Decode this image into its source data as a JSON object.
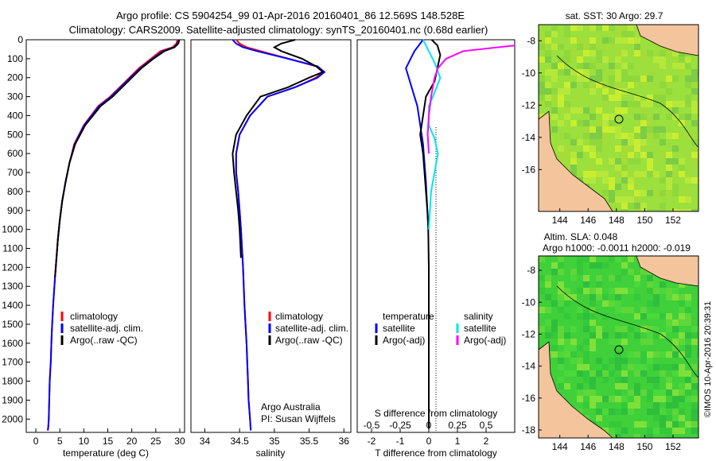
{
  "header": {
    "line1": "Argo profile: CS 5904254_99 01-Apr-2016 20160401_86 12.569S 148.528E",
    "line2": "Climatology: CARS2009. Satellite-adjusted climatology: synTS_20160401.nc (0.68d earlier)"
  },
  "colors": {
    "climatology": "#ff0000",
    "satellite": "#0000ff",
    "argo": "#000000",
    "satellite_salinity": "#00e5ee",
    "argo_salinity_adj": "#ff00ff",
    "land": "#f4c49c",
    "sst_field": "#9be03c",
    "sla_field": "#3fd03a"
  },
  "chart_data": [
    {
      "type": "line",
      "id": "temperature",
      "xlabel": "temperature (deg C)",
      "ylabel": "",
      "xlim": [
        -2,
        31
      ],
      "ylim": [
        2070,
        0
      ],
      "xticks": [
        "0",
        "5",
        "10",
        "15",
        "20",
        "25",
        "30"
      ],
      "yticks": [
        "0",
        "100",
        "200",
        "300",
        "400",
        "500",
        "600",
        "700",
        "800",
        "900",
        "1000",
        "1100",
        "1200",
        "1300",
        "1400",
        "1500",
        "1600",
        "1700",
        "1800",
        "1900",
        "2000"
      ],
      "legend": [
        "climatology",
        "satellite-adj. clim.",
        "Argo(..raw -QC)"
      ],
      "series": [
        {
          "name": "climatology",
          "color": "#ff0000",
          "x": [
            29.5,
            29.3,
            28.5,
            26.0,
            24.0,
            21.5,
            19.5,
            17.5,
            15.5,
            13.0,
            10.0,
            8.0,
            7.0,
            6.2,
            5.5,
            5.0,
            4.6,
            4.3,
            4.0,
            3.6,
            3.3,
            3.1,
            2.9,
            2.8,
            2.7,
            2.6,
            2.5
          ],
          "y": [
            0,
            20,
            40,
            60,
            100,
            150,
            200,
            250,
            300,
            350,
            450,
            550,
            650,
            750,
            850,
            950,
            1050,
            1150,
            1250,
            1400,
            1550,
            1700,
            1800,
            1900,
            2000,
            2040,
            2060
          ]
        },
        {
          "name": "satellite-adj. clim.",
          "color": "#0000ff",
          "x": [
            29.8,
            29.5,
            28.8,
            26.5,
            24.3,
            21.8,
            19.7,
            17.7,
            15.7,
            13.2,
            10.1,
            8.1,
            7.0,
            6.2,
            5.5,
            5.0,
            4.6,
            4.3,
            4.0,
            3.6,
            3.3,
            3.1,
            2.9,
            2.8,
            2.7,
            2.6,
            2.5
          ],
          "y": [
            0,
            20,
            40,
            60,
            100,
            150,
            200,
            250,
            300,
            350,
            450,
            550,
            650,
            750,
            850,
            950,
            1050,
            1150,
            1250,
            1400,
            1550,
            1700,
            1800,
            1900,
            2000,
            2040,
            2060
          ]
        },
        {
          "name": "Argo(..raw -QC)",
          "color": "#000000",
          "x": [
            29.9,
            29.7,
            28.9,
            26.8,
            24.5,
            22.0,
            20.0,
            18.0,
            16.0,
            13.5,
            10.3,
            8.2,
            7.0,
            6.2,
            5.5,
            5.0,
            4.6,
            4.3,
            4.0
          ],
          "y": [
            0,
            20,
            40,
            60,
            100,
            150,
            200,
            250,
            300,
            350,
            450,
            550,
            650,
            750,
            850,
            950,
            1050,
            1150,
            1250
          ]
        }
      ]
    },
    {
      "type": "line",
      "id": "salinity",
      "xlabel": "salinity",
      "xlim": [
        33.8,
        36.1
      ],
      "ylim": [
        2070,
        0
      ],
      "xticks": [
        "34",
        "34.5",
        "35",
        "35.5",
        "36"
      ],
      "legend": [
        "climatology",
        "satellite-adj. clim.",
        "Argo(..raw -QC)"
      ],
      "annotation": [
        "Argo Australia",
        "PI: Susan Wijffels"
      ],
      "series": [
        {
          "name": "climatology",
          "color": "#ff0000",
          "x": [
            34.45,
            34.5,
            34.6,
            34.8,
            35.2,
            35.6,
            35.7,
            35.6,
            35.3,
            34.9,
            34.65,
            34.5,
            34.45,
            34.45,
            34.48,
            34.5,
            34.52,
            34.55,
            34.57,
            34.6,
            34.62,
            34.63,
            34.65,
            34.66
          ],
          "y": [
            0,
            20,
            40,
            60,
            100,
            140,
            170,
            200,
            250,
            300,
            400,
            500,
            600,
            700,
            800,
            900,
            1000,
            1200,
            1400,
            1600,
            1800,
            1900,
            2000,
            2060
          ]
        },
        {
          "name": "satellite-adj. clim.",
          "color": "#0000ff",
          "x": [
            34.4,
            34.45,
            34.55,
            34.75,
            35.2,
            35.62,
            35.72,
            35.62,
            35.3,
            34.9,
            34.65,
            34.5,
            34.45,
            34.45,
            34.48,
            34.5,
            34.52,
            34.55,
            34.57,
            34.6,
            34.62,
            34.63,
            34.65,
            34.66
          ],
          "y": [
            0,
            20,
            40,
            60,
            100,
            140,
            170,
            200,
            250,
            300,
            400,
            500,
            600,
            700,
            800,
            900,
            1000,
            1200,
            1400,
            1600,
            1800,
            1900,
            2000,
            2060
          ]
        },
        {
          "name": "Argo(..raw -QC)",
          "color": "#000000",
          "x": [
            35.3,
            35.1,
            35.0,
            35.1,
            35.4,
            35.6,
            35.7,
            35.5,
            35.2,
            34.8,
            34.6,
            34.45,
            34.4,
            34.42,
            34.45,
            34.48,
            34.5,
            34.52
          ],
          "y": [
            0,
            20,
            40,
            60,
            100,
            140,
            170,
            200,
            250,
            300,
            400,
            500,
            600,
            700,
            800,
            900,
            1000,
            1150
          ]
        }
      ]
    },
    {
      "type": "line",
      "id": "differences",
      "xlabel": "T difference from climatology",
      "xlabel_top": "S difference from climatology",
      "xlim": [
        -2.5,
        3
      ],
      "xlim_s": [
        -0.625,
        0.75
      ],
      "ylim": [
        2070,
        0
      ],
      "xticks": [
        "-2",
        "-1",
        "0",
        "1",
        "2"
      ],
      "xticks_s": [
        "-0.5",
        "-0.25",
        "0",
        "0.25",
        "0.5"
      ],
      "legend_left_title": "temperature",
      "legend_right_title": "salinity",
      "legend": [
        "satellite",
        "Argo(-adj)",
        "satellite",
        "Argo(-adj)"
      ],
      "series": [
        {
          "name": "temperature satellite",
          "color": "#0000ff",
          "x": [
            -0.2,
            -0.5,
            -0.8,
            -0.6,
            -0.4,
            -0.3,
            -0.2,
            -0.15,
            -0.1,
            -0.05,
            0.0
          ],
          "y": [
            0,
            60,
            150,
            250,
            350,
            450,
            550,
            650,
            750,
            900,
            1000
          ]
        },
        {
          "name": "temperature Argo(-adj)",
          "color": "#000000",
          "x": [
            0.1,
            0.3,
            0.4,
            0.3,
            0.2,
            -0.1,
            -0.2,
            -0.3,
            -0.2,
            -0.15,
            -0.1,
            -0.05,
            -0.02,
            0.0,
            0.0,
            0.0
          ],
          "y": [
            0,
            30,
            80,
            150,
            220,
            300,
            400,
            500,
            600,
            700,
            800,
            900,
            1000,
            1200,
            1600,
            2050
          ]
        },
        {
          "name": "salinity satellite",
          "color": "#00e5ee",
          "x": [
            -0.05,
            0.0,
            0.05,
            0.1,
            0.05,
            0.0,
            0.0,
            0.05,
            0.08,
            0.05,
            0.02,
            0.0
          ],
          "y": [
            0,
            60,
            120,
            200,
            280,
            350,
            450,
            520,
            600,
            700,
            800,
            1000
          ]
        },
        {
          "name": "salinity Argo(-adj)",
          "color": "#ff00ff",
          "x": [
            0.75,
            0.3,
            0.15,
            0.08,
            0.05,
            0.02,
            0.0,
            -0.01,
            0.0
          ],
          "y": [
            30,
            60,
            100,
            150,
            200,
            300,
            400,
            500,
            600
          ]
        }
      ]
    }
  ],
  "maps": {
    "sst": {
      "title": "sat. SST: 30 Argo: 29.7",
      "lon_ticks": [
        "144",
        "146",
        "148",
        "150",
        "152"
      ],
      "lat_ticks": [
        "-8",
        "-10",
        "-12",
        "-14",
        "-16"
      ]
    },
    "sla": {
      "title": "Altim. SLA: 0.048",
      "subtitle": "Argo h1000: -0.0011 h2000: -0.019",
      "lon_ticks": [
        "144",
        "146",
        "148",
        "150",
        "152"
      ],
      "lat_ticks": [
        "-8",
        "-10",
        "-12",
        "-14",
        "-16",
        "-18"
      ]
    },
    "float_position": {
      "lon": 148.528,
      "lat": -12.569
    }
  },
  "side_label": "©IMOS 10-Apr-2016 20:39:31"
}
